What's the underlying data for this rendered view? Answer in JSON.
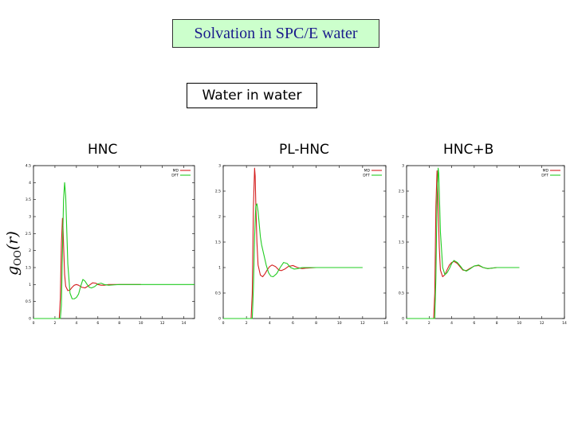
{
  "slide": {
    "title": "Solvation in SPC/E water",
    "subtitle": "Water in water",
    "ylabel": {
      "base": "g",
      "sub": "OO",
      "args": "(r)"
    }
  },
  "colors": {
    "md": "#d42020",
    "dft": "#22cc22",
    "title_bg": "#ccffcc",
    "title_text": "#1a1a8c"
  },
  "chart_data": [
    {
      "type": "line",
      "title": "HNC",
      "xlim": [
        0,
        15
      ],
      "ylim": [
        0,
        4.5
      ],
      "xticks": [
        0,
        2,
        4,
        6,
        8,
        10,
        12,
        14
      ],
      "yticks": [
        0,
        0.5,
        1,
        1.5,
        2,
        2.5,
        3,
        3.5,
        4,
        4.5
      ],
      "legend_position": "top-right",
      "series": [
        {
          "name": "MD",
          "color": "#d42020",
          "x": [
            0,
            2.4,
            2.5,
            2.6,
            2.7,
            2.75,
            2.8,
            2.9,
            3.0,
            3.2,
            3.4,
            3.6,
            3.8,
            4.0,
            4.2,
            4.5,
            4.8,
            5.0,
            5.2,
            5.5,
            5.8,
            6.0,
            6.3,
            6.6,
            7.0,
            7.5,
            8.0,
            9.0,
            10.0
          ],
          "y": [
            0,
            0,
            0.6,
            2.2,
            2.95,
            2.7,
            2.2,
            1.3,
            0.95,
            0.82,
            0.84,
            0.92,
            0.98,
            1.0,
            0.98,
            0.92,
            0.9,
            0.94,
            0.98,
            1.05,
            1.04,
            1.0,
            0.98,
            0.98,
            1.0,
            1.0,
            1.0,
            1.0,
            1.0
          ]
        },
        {
          "name": "DFT",
          "color": "#22cc22",
          "x": [
            0,
            2.5,
            2.6,
            2.7,
            2.8,
            2.9,
            3.0,
            3.1,
            3.2,
            3.4,
            3.6,
            3.8,
            4.0,
            4.2,
            4.4,
            4.6,
            4.8,
            5.0,
            5.2,
            5.4,
            5.7,
            6.0,
            6.3,
            6.6,
            7.0,
            7.5,
            8.0,
            9.0,
            10.0,
            12.0,
            15.0
          ],
          "y": [
            0,
            0,
            0.4,
            2.0,
            3.5,
            4.0,
            3.6,
            2.6,
            1.6,
            0.75,
            0.58,
            0.58,
            0.62,
            0.72,
            0.95,
            1.15,
            1.1,
            1.0,
            0.92,
            0.9,
            0.94,
            1.02,
            1.04,
            1.0,
            0.98,
            0.99,
            1.0,
            1.0,
            1.0,
            1.0,
            1.0
          ]
        }
      ]
    },
    {
      "type": "line",
      "title": "PL-HNC",
      "xlim": [
        0,
        14
      ],
      "ylim": [
        0,
        3
      ],
      "xticks": [
        0,
        2,
        4,
        6,
        8,
        10,
        12,
        14
      ],
      "yticks": [
        0,
        0.5,
        1,
        1.5,
        2,
        2.5,
        3
      ],
      "legend_position": "top-right",
      "series": [
        {
          "name": "MD",
          "color": "#d42020",
          "x": [
            0,
            2.4,
            2.5,
            2.6,
            2.7,
            2.75,
            2.8,
            2.9,
            3.0,
            3.2,
            3.4,
            3.6,
            3.8,
            4.0,
            4.2,
            4.5,
            4.8,
            5.0,
            5.3,
            5.6,
            6.0,
            6.4,
            6.8,
            7.2,
            8.0,
            9.0,
            10.0
          ],
          "y": [
            0,
            0,
            0.5,
            2.2,
            2.95,
            2.8,
            2.3,
            1.5,
            1.05,
            0.85,
            0.82,
            0.88,
            0.96,
            1.02,
            1.05,
            1.02,
            0.95,
            0.94,
            0.97,
            1.02,
            1.04,
            1.0,
            0.98,
            0.99,
            1.0,
            1.0,
            1.0
          ]
        },
        {
          "name": "DFT",
          "color": "#22cc22",
          "x": [
            0,
            2.5,
            2.6,
            2.7,
            2.8,
            2.9,
            3.0,
            3.1,
            3.2,
            3.3,
            3.5,
            3.7,
            3.9,
            4.1,
            4.3,
            4.6,
            4.9,
            5.2,
            5.5,
            5.8,
            6.1,
            6.4,
            6.8,
            7.2,
            8.0,
            9.0,
            10.0,
            12.0
          ],
          "y": [
            0,
            0,
            0.6,
            1.6,
            2.2,
            2.25,
            2.1,
            1.85,
            1.6,
            1.45,
            1.25,
            1.05,
            0.9,
            0.83,
            0.82,
            0.88,
            1.0,
            1.1,
            1.08,
            1.0,
            0.97,
            0.98,
            1.0,
            1.0,
            1.0,
            1.0,
            1.0,
            1.0
          ]
        }
      ]
    },
    {
      "type": "line",
      "title": "HNC+B",
      "xlim": [
        0,
        14
      ],
      "ylim": [
        0,
        3
      ],
      "xticks": [
        0,
        2,
        4,
        6,
        8,
        10,
        12,
        14
      ],
      "yticks": [
        0,
        0.5,
        1,
        1.5,
        2,
        2.5,
        3
      ],
      "legend_position": "top-right",
      "series": [
        {
          "name": "MD",
          "color": "#d42020",
          "x": [
            0,
            2.4,
            2.5,
            2.6,
            2.7,
            2.75,
            2.8,
            2.9,
            3.0,
            3.2,
            3.4,
            3.6,
            3.8,
            4.0,
            4.2,
            4.5,
            4.8,
            5.0,
            5.3,
            5.6,
            6.0,
            6.4,
            6.8,
            7.2,
            8.0,
            9.0,
            10.0
          ],
          "y": [
            0,
            0,
            0.5,
            2.2,
            2.9,
            2.7,
            2.2,
            1.4,
            0.95,
            0.82,
            0.86,
            0.96,
            1.05,
            1.1,
            1.12,
            1.08,
            1.0,
            0.95,
            0.94,
            0.98,
            1.03,
            1.04,
            1.0,
            0.98,
            1.0,
            1.0,
            1.0
          ]
        },
        {
          "name": "DFT",
          "color": "#22cc22",
          "x": [
            0,
            2.5,
            2.6,
            2.7,
            2.8,
            2.85,
            2.9,
            3.0,
            3.2,
            3.4,
            3.6,
            3.8,
            4.0,
            4.2,
            4.5,
            4.8,
            5.0,
            5.3,
            5.6,
            6.0,
            6.4,
            6.8,
            7.2,
            8.0,
            9.0,
            10.0
          ],
          "y": [
            0,
            0,
            0.8,
            2.3,
            2.95,
            2.85,
            2.5,
            1.7,
            1.0,
            0.86,
            0.9,
            0.98,
            1.08,
            1.14,
            1.1,
            1.02,
            0.96,
            0.93,
            0.97,
            1.03,
            1.05,
            1.0,
            0.98,
            1.0,
            1.0,
            1.0
          ]
        }
      ]
    }
  ]
}
